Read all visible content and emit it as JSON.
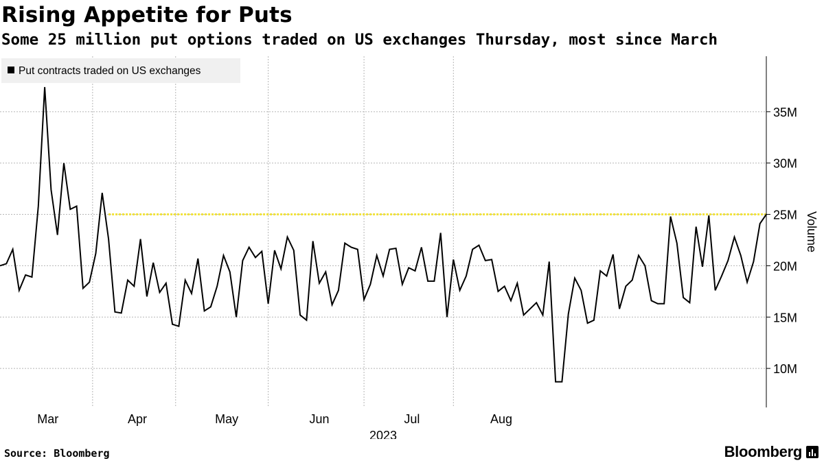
{
  "header": {
    "title": "Rising Appetite for Puts",
    "subtitle": "Some 25 million put options traded on US exchanges Thursday, most since March"
  },
  "footer": {
    "source": "Source: Bloomberg",
    "brand": "Bloomberg"
  },
  "colors": {
    "line": "#000000",
    "reference_line": "#f2e33a",
    "grid": "#b5b5b5",
    "legend_bg": "#f0f0f0"
  },
  "chart_data": {
    "type": "line",
    "title": "Rising Appetite for Puts",
    "subtitle": "Some 25 million put options traded on US exchanges Thursday, most since March",
    "xlabel": "2023",
    "ylabel": "Volume",
    "y_unit": "millions of contracts",
    "ylim": [
      6.2,
      40.0
    ],
    "yticks": [
      10,
      15,
      20,
      25,
      30,
      35
    ],
    "ytick_labels": [
      "10M",
      "15M",
      "20M",
      "25M",
      "30M",
      "35M"
    ],
    "x_label_year": "2023",
    "month_labels": [
      {
        "label": "Mar",
        "index": 7.5
      },
      {
        "label": "Apr",
        "index": 21.5
      },
      {
        "label": "May",
        "index": 35.5
      },
      {
        "label": "Jun",
        "index": 50
      },
      {
        "label": "Jul",
        "index": 64.5
      },
      {
        "label": "Aug",
        "index": 78.5
      }
    ],
    "month_gridlines_at_index": [
      14.5,
      27.5,
      42,
      57,
      71
    ],
    "legend": [
      "Put contracts traded on US exchanges"
    ],
    "legend_position": "top-left",
    "grid": true,
    "reference_line": {
      "y": 25,
      "style": "dashed"
    },
    "series": [
      {
        "name": "Put contracts traded on US exchanges",
        "values": [
          20.0,
          20.2,
          21.6,
          17.6,
          19.1,
          18.9,
          25.8,
          37.4,
          27.4,
          23.0,
          30.0,
          25.5,
          25.8,
          17.8,
          18.4,
          21.2,
          27.1,
          22.6,
          15.5,
          15.4,
          18.6,
          18.0,
          22.6,
          17.0,
          20.3,
          17.4,
          18.3,
          14.3,
          14.1,
          18.6,
          17.3,
          20.7,
          15.6,
          16.0,
          18.0,
          21.0,
          19.4,
          15.0,
          20.5,
          21.8,
          20.8,
          21.4,
          16.3,
          21.5,
          19.7,
          22.8,
          21.5,
          15.2,
          14.7,
          22.4,
          18.3,
          19.4,
          16.2,
          17.6,
          22.2,
          21.8,
          21.6,
          16.7,
          18.2,
          21.0,
          19.0,
          21.6,
          21.7,
          18.2,
          19.8,
          19.5,
          21.8,
          18.5,
          18.5,
          23.2,
          15.0,
          20.6,
          17.6,
          19.0,
          21.6,
          22.0,
          20.5,
          20.6,
          17.5,
          18.0,
          16.6,
          18.3,
          15.2,
          15.8,
          16.4,
          15.2,
          20.4,
          8.7,
          8.7,
          15.3,
          18.8,
          17.6,
          14.4,
          14.7,
          19.5,
          19.0,
          21.1,
          15.8,
          18.0,
          18.6,
          21.0,
          20.0,
          16.6,
          16.3,
          16.3,
          24.8,
          22.2,
          16.9,
          16.4,
          23.8,
          19.9,
          24.9,
          17.6,
          19.0,
          20.5,
          22.8,
          21.0,
          18.4,
          20.4,
          24.1,
          25.0
        ]
      }
    ]
  }
}
